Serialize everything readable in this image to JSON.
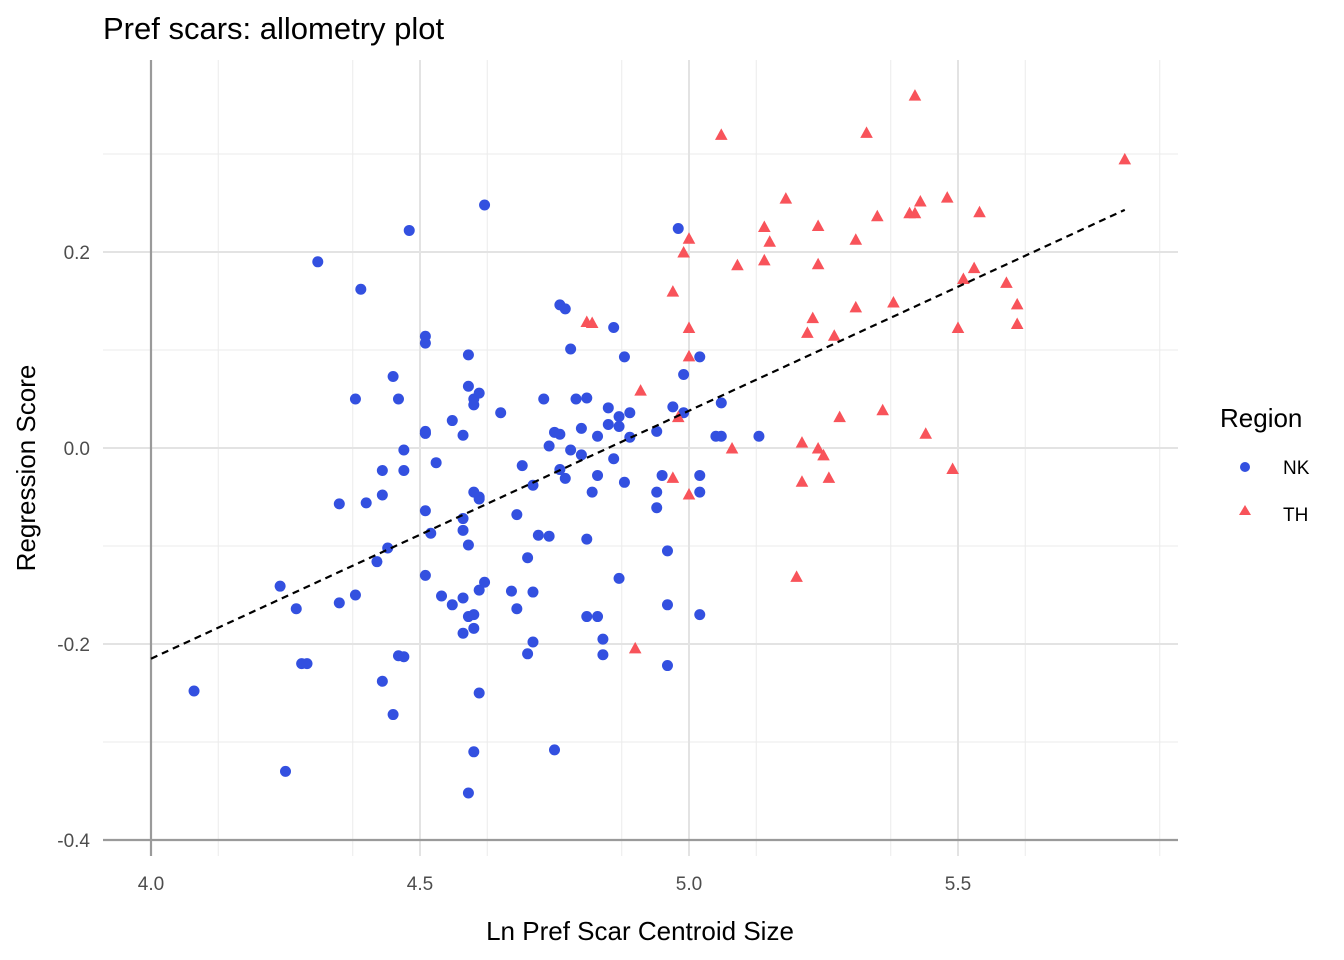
{
  "chart_data": {
    "type": "scatter",
    "title": "Pref scars: allometry plot",
    "xlabel": "Ln Pref Scar Centroid Size",
    "ylabel": "Regression Score",
    "xlim": [
      3.9,
      5.92
    ],
    "ylim": [
      -0.415,
      0.395
    ],
    "x_ticks": [
      "4.0",
      "4.5",
      "5.0",
      "5.5"
    ],
    "y_ticks": [
      "-0.4",
      "-0.2",
      "0.0",
      "0.2"
    ],
    "grid": true,
    "legend": {
      "title": "Region",
      "position": "right"
    },
    "regression_line": {
      "style": "dashed",
      "color": "#000000",
      "x": [
        4.0,
        5.81
      ],
      "y": [
        -0.215,
        0.243
      ]
    },
    "series": [
      {
        "name": "NK",
        "color": "#3350e0",
        "marker": "circle",
        "x": [
          4.08,
          4.24,
          4.25,
          4.27,
          4.28,
          4.29,
          4.31,
          4.35,
          4.35,
          4.38,
          4.38,
          4.39,
          4.4,
          4.42,
          4.43,
          4.43,
          4.43,
          4.44,
          4.45,
          4.45,
          4.46,
          4.46,
          4.47,
          4.47,
          4.47,
          4.48,
          4.51,
          4.51,
          4.51,
          4.51,
          4.51,
          4.51,
          4.51,
          4.52,
          4.53,
          4.54,
          4.56,
          4.56,
          4.58,
          4.58,
          4.58,
          4.58,
          4.58,
          4.59,
          4.59,
          4.59,
          4.59,
          4.59,
          4.6,
          4.6,
          4.6,
          4.6,
          4.6,
          4.6,
          4.61,
          4.61,
          4.61,
          4.61,
          4.61,
          4.62,
          4.62,
          4.65,
          4.67,
          4.68,
          4.68,
          4.69,
          4.7,
          4.7,
          4.71,
          4.71,
          4.71,
          4.72,
          4.73,
          4.74,
          4.74,
          4.75,
          4.75,
          4.76,
          4.76,
          4.76,
          4.77,
          4.77,
          4.78,
          4.78,
          4.79,
          4.8,
          4.8,
          4.81,
          4.81,
          4.81,
          4.82,
          4.83,
          4.83,
          4.83,
          4.84,
          4.84,
          4.85,
          4.85,
          4.86,
          4.86,
          4.87,
          4.87,
          4.87,
          4.88,
          4.88,
          4.89,
          4.89,
          4.94,
          4.94,
          4.94,
          4.95,
          4.96,
          4.96,
          4.96,
          4.97,
          4.98,
          4.99,
          4.99,
          5.02,
          5.02,
          5.02,
          5.02,
          5.05,
          5.06,
          5.06,
          5.13
        ],
        "y": [
          -0.248,
          -0.141,
          -0.33,
          -0.164,
          -0.22,
          -0.22,
          0.19,
          -0.057,
          -0.158,
          0.05,
          -0.15,
          0.162,
          -0.056,
          -0.116,
          -0.023,
          -0.048,
          -0.238,
          -0.102,
          0.073,
          -0.272,
          0.05,
          -0.212,
          -0.002,
          -0.023,
          -0.213,
          0.222,
          0.015,
          0.017,
          -0.13,
          0.107,
          0.114,
          0.015,
          -0.064,
          -0.087,
          -0.015,
          -0.151,
          -0.16,
          0.028,
          0.013,
          -0.072,
          -0.084,
          -0.153,
          -0.189,
          0.095,
          0.063,
          -0.172,
          -0.352,
          -0.099,
          -0.31,
          -0.184,
          -0.17,
          0.044,
          -0.045,
          0.05,
          0.056,
          -0.25,
          -0.145,
          -0.052,
          -0.05,
          -0.137,
          0.248,
          0.036,
          -0.146,
          -0.068,
          -0.164,
          -0.018,
          -0.112,
          -0.21,
          -0.038,
          -0.147,
          -0.198,
          -0.089,
          0.05,
          0.002,
          -0.09,
          -0.308,
          0.016,
          0.014,
          -0.022,
          0.146,
          -0.031,
          0.142,
          -0.002,
          0.101,
          0.05,
          0.02,
          -0.007,
          -0.172,
          0.051,
          -0.093,
          -0.045,
          -0.172,
          -0.028,
          0.012,
          -0.195,
          -0.211,
          0.024,
          0.041,
          0.123,
          -0.011,
          -0.133,
          0.032,
          0.022,
          0.093,
          -0.035,
          0.036,
          0.011,
          0.017,
          -0.045,
          -0.061,
          -0.028,
          -0.105,
          -0.222,
          -0.16,
          0.042,
          0.224,
          0.075,
          0.036,
          0.093,
          -0.028,
          -0.045,
          -0.17,
          0.012,
          0.046,
          0.012,
          0.012
        ],
        "note_omitted": []
      },
      {
        "name": "TH",
        "color": "#f8535a",
        "marker": "triangle",
        "x": [
          4.81,
          4.82,
          4.9,
          4.91,
          4.97,
          4.97,
          4.98,
          4.99,
          5.0,
          5.0,
          5.0,
          5.0,
          5.06,
          5.08,
          5.09,
          5.14,
          5.14,
          5.15,
          5.18,
          5.2,
          5.21,
          5.21,
          5.22,
          5.23,
          5.24,
          5.24,
          5.24,
          5.25,
          5.26,
          5.27,
          5.28,
          5.31,
          5.31,
          5.33,
          5.35,
          5.36,
          5.38,
          5.41,
          5.42,
          5.42,
          5.43,
          5.44,
          5.48,
          5.49,
          5.5,
          5.51,
          5.53,
          5.54,
          5.59,
          5.61,
          5.61,
          5.81
        ],
        "y": [
          0.128,
          0.127,
          -0.205,
          0.058,
          0.159,
          -0.031,
          0.031,
          0.199,
          0.213,
          0.122,
          0.093,
          -0.048,
          0.319,
          -0.001,
          0.186,
          0.225,
          0.191,
          0.21,
          0.254,
          -0.132,
          0.005,
          -0.035,
          0.117,
          0.132,
          0.226,
          0.187,
          -0.001,
          -0.008,
          -0.031,
          0.114,
          0.031,
          0.143,
          0.212,
          0.321,
          0.236,
          0.038,
          0.148,
          0.239,
          0.239,
          0.359,
          0.251,
          0.014,
          0.255,
          -0.022,
          0.122,
          0.172,
          0.183,
          0.24,
          0.168,
          0.146,
          0.126,
          0.294
        ]
      }
    ]
  }
}
